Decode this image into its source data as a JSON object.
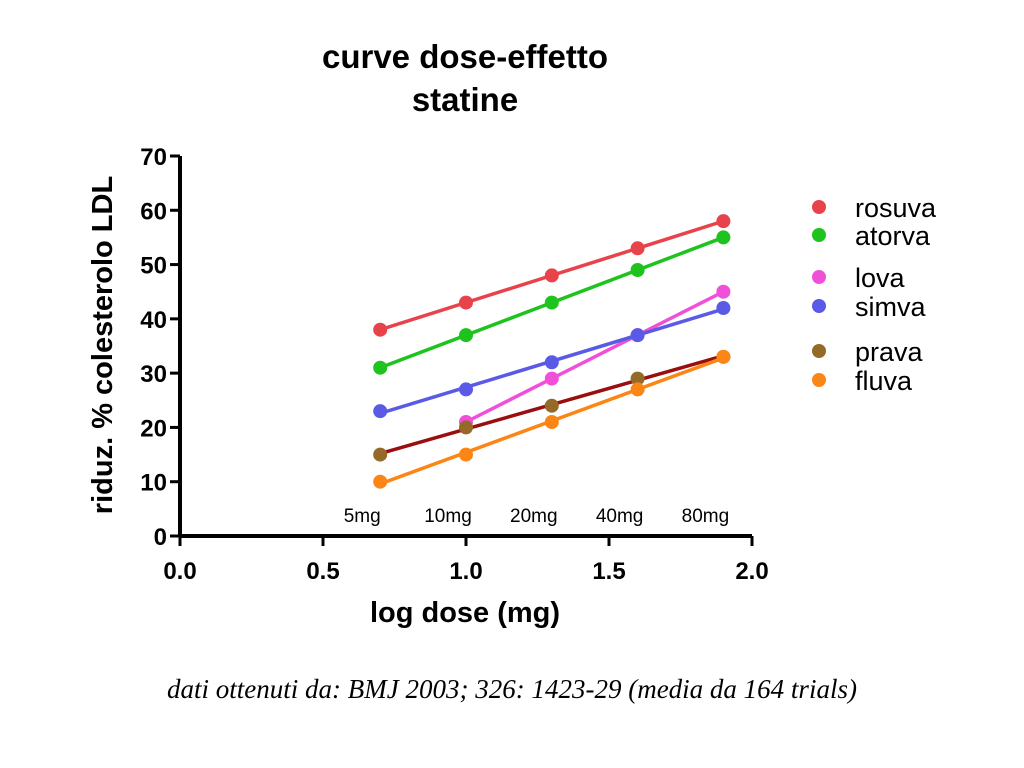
{
  "chart_data": {
    "type": "scatter",
    "title_line1": "curve dose-effetto",
    "title_line2": "statine",
    "xlabel": "log dose (mg)",
    "ylabel": "riduz. % colesterolo LDL",
    "xlim": [
      0,
      2
    ],
    "ylim": [
      0,
      70
    ],
    "xticks": [
      0.0,
      0.5,
      1.0,
      1.5,
      2.0
    ],
    "xtick_labels": [
      "0.0",
      "0.5",
      "1.0",
      "1.5",
      "2.0"
    ],
    "yticks": [
      0,
      10,
      20,
      30,
      40,
      50,
      60,
      70
    ],
    "dose_labels": [
      {
        "x": 0.7,
        "label": "5mg"
      },
      {
        "x": 1.0,
        "label": "10mg"
      },
      {
        "x": 1.3,
        "label": "20mg"
      },
      {
        "x": 1.6,
        "label": "40mg"
      },
      {
        "x": 1.9,
        "label": "80mg"
      }
    ],
    "legend_position": "right",
    "series": [
      {
        "name": "rosuva",
        "color": "#e8424a",
        "line_color": "#e8424a",
        "points": [
          [
            0.7,
            38
          ],
          [
            1.0,
            43
          ],
          [
            1.3,
            48
          ],
          [
            1.6,
            53
          ],
          [
            1.9,
            58
          ]
        ]
      },
      {
        "name": "atorva",
        "color": "#1ec31e",
        "line_color": "#1ec31e",
        "points": [
          [
            0.7,
            31
          ],
          [
            1.0,
            37
          ],
          [
            1.3,
            43
          ],
          [
            1.6,
            49
          ],
          [
            1.9,
            55
          ]
        ]
      },
      {
        "name": "lova",
        "color": "#f050d8",
        "line_color": "#f050d8",
        "points": [
          [
            1.0,
            21
          ],
          [
            1.3,
            29
          ],
          [
            1.6,
            37
          ],
          [
            1.9,
            45
          ]
        ]
      },
      {
        "name": "simva",
        "color": "#5a5ae6",
        "line_color": "#5a5ae6",
        "points": [
          [
            0.7,
            23
          ],
          [
            1.0,
            27
          ],
          [
            1.3,
            32
          ],
          [
            1.6,
            37
          ],
          [
            1.9,
            42
          ]
        ]
      },
      {
        "name": "prava",
        "color": "#956a28",
        "line_color": "#9a0e0e",
        "points": [
          [
            0.7,
            15
          ],
          [
            1.0,
            20
          ],
          [
            1.3,
            24
          ],
          [
            1.6,
            29
          ],
          [
            1.9,
            33
          ]
        ]
      },
      {
        "name": "fluva",
        "color": "#fb8615",
        "line_color": "#fb8615",
        "points": [
          [
            0.7,
            10
          ],
          [
            1.0,
            15
          ],
          [
            1.3,
            21
          ],
          [
            1.6,
            27
          ],
          [
            1.9,
            33
          ]
        ]
      }
    ]
  },
  "caption": "dati ottenuti da: BMJ 2003; 326: 1423-29 (media da 164 trials)"
}
